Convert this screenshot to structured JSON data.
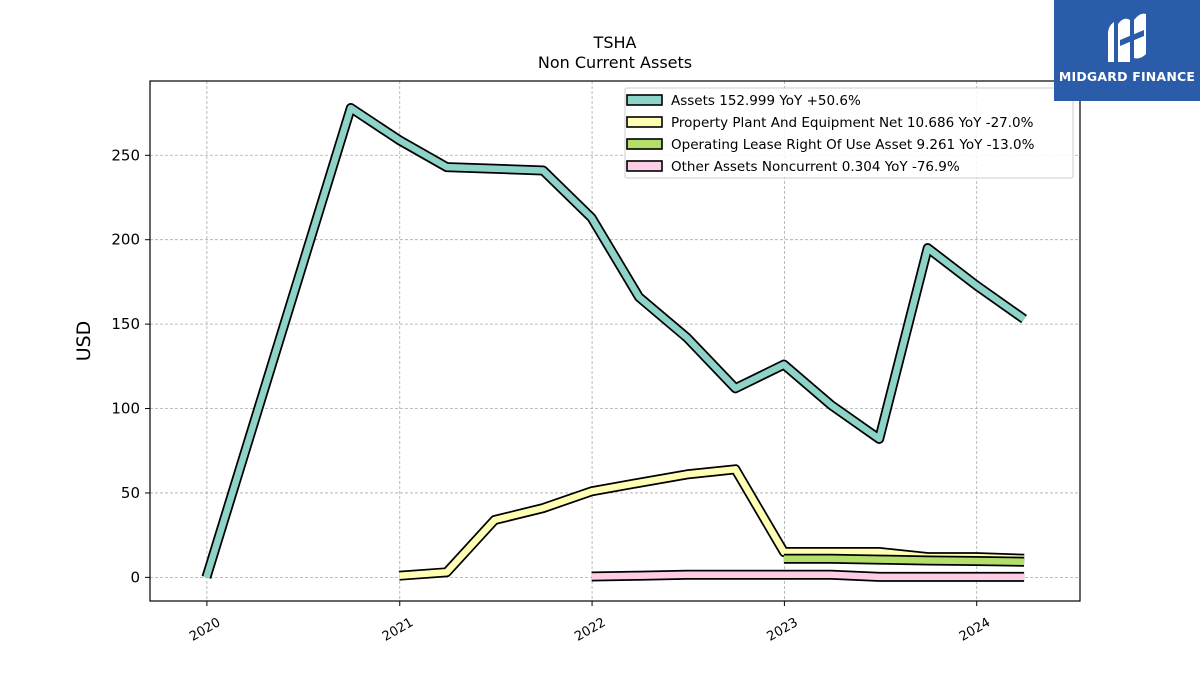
{
  "chart_data": {
    "type": "line",
    "title": "TSHA",
    "subtitle": "Non Current  Assets",
    "ylabel": "USD",
    "xlabel": "",
    "x_ticks": [
      "2020",
      "2021",
      "2022",
      "2023",
      "2024"
    ],
    "y_ticks": [
      0,
      50,
      100,
      150,
      200,
      250
    ],
    "ylim": [
      -14,
      294
    ],
    "xlim": [
      "2019-09-15",
      "2024-07-15"
    ],
    "grid": true,
    "legend_position": "top-right",
    "series": [
      {
        "name": "Assets",
        "legend": "Assets  152.999 YoY +50.6%",
        "color": "#8dd3c7",
        "points": [
          [
            "2019-12-31",
            0
          ],
          [
            "2020-09-30",
            278
          ],
          [
            "2020-12-31",
            259
          ],
          [
            "2021-03-31",
            243
          ],
          [
            "2021-06-30",
            242
          ],
          [
            "2021-09-30",
            241
          ],
          [
            "2021-12-31",
            213
          ],
          [
            "2022-03-31",
            166
          ],
          [
            "2022-06-30",
            142
          ],
          [
            "2022-09-30",
            112
          ],
          [
            "2022-12-31",
            126
          ],
          [
            "2023-03-31",
            102
          ],
          [
            "2023-06-30",
            82
          ],
          [
            "2023-09-30",
            195
          ],
          [
            "2023-12-31",
            173
          ],
          [
            "2024-03-31",
            153
          ]
        ]
      },
      {
        "name": "Property Plant And Equipment Net",
        "legend": "Property Plant And Equipment Net  10.686 YoY -27.0%",
        "color": "#ffffb3",
        "points": [
          [
            "2020-12-31",
            1
          ],
          [
            "2021-03-31",
            3
          ],
          [
            "2021-06-30",
            34
          ],
          [
            "2021-09-30",
            41
          ],
          [
            "2021-12-31",
            51
          ],
          [
            "2022-03-31",
            56
          ],
          [
            "2022-06-30",
            61
          ],
          [
            "2022-09-30",
            64
          ],
          [
            "2022-12-31",
            15
          ],
          [
            "2023-03-31",
            15
          ],
          [
            "2023-06-30",
            15
          ],
          [
            "2023-09-30",
            12
          ],
          [
            "2023-12-31",
            12
          ],
          [
            "2024-03-31",
            11
          ]
        ]
      },
      {
        "name": "Operating Lease Right Of Use Asset",
        "legend": "Operating Lease Right Of Use Asset  9.261 YoY -13.0%",
        "color": "#b3de69",
        "points": [
          [
            "2022-12-31",
            11
          ],
          [
            "2023-03-31",
            11
          ],
          [
            "2023-06-30",
            10.5
          ],
          [
            "2023-09-30",
            10
          ],
          [
            "2023-12-31",
            9.7
          ],
          [
            "2024-03-31",
            9.3
          ]
        ]
      },
      {
        "name": "Other Assets Noncurrent",
        "legend": "Other Assets Noncurrent  0.304 YoY -76.9%",
        "color": "#fccde5",
        "points": [
          [
            "2021-12-31",
            0.5
          ],
          [
            "2022-03-31",
            1
          ],
          [
            "2022-06-30",
            1.5
          ],
          [
            "2022-09-30",
            1.5
          ],
          [
            "2022-12-31",
            1.5
          ],
          [
            "2023-03-31",
            1.5
          ],
          [
            "2023-06-30",
            0.3
          ],
          [
            "2023-09-30",
            0.3
          ],
          [
            "2023-12-31",
            0.3
          ],
          [
            "2024-03-31",
            0.3
          ]
        ]
      }
    ]
  },
  "watermark": {
    "brand": "MIDGARD FINANCE",
    "background": "#2a5caa",
    "icon": "midgard-logo-icon"
  }
}
